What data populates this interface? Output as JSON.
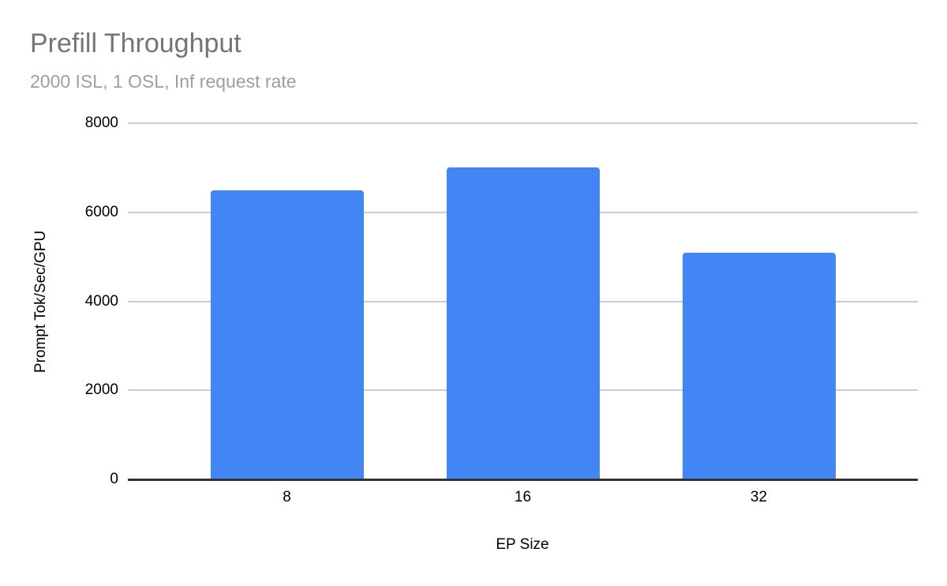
{
  "chart_data": {
    "type": "bar",
    "title": "Prefill Throughput",
    "subtitle": "2000 ISL, 1 OSL, Inf request rate",
    "categories": [
      "8",
      "16",
      "32"
    ],
    "values": [
      6500,
      7000,
      5100
    ],
    "xlabel": "EP Size",
    "ylabel": "Prompt Tok/Sec/GPU",
    "ylim": [
      0,
      8000
    ],
    "yticks": [
      0,
      2000,
      4000,
      6000,
      8000
    ],
    "grid": true,
    "legend": false,
    "colors": {
      "bar": "#4285f4",
      "gridline": "#cccccc",
      "axis_line": "#333333",
      "tick_label": "#000000",
      "title": "#757575",
      "subtitle": "#9e9e9e"
    }
  }
}
